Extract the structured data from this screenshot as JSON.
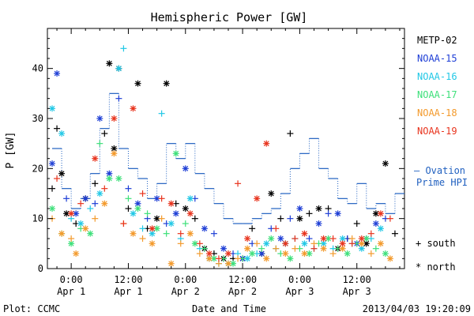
{
  "chart_data": {
    "type": "scatter",
    "title": "Hemispheric Power [GW]",
    "xlabel": "Date and Time",
    "ylabel": "P [GW]",
    "ylim": [
      0,
      48
    ],
    "yticks": [
      0,
      10,
      20,
      30,
      40
    ],
    "xlim_hours_from_apr1_0000": [
      -5,
      70
    ],
    "x_tick_labels": [
      {
        "time": "0:00",
        "date": "Apr 1"
      },
      {
        "time": "12:00",
        "date": "Apr 1"
      },
      {
        "time": "0:00",
        "date": "Apr 2"
      },
      {
        "time": "12:00",
        "date": "Apr 2"
      },
      {
        "time": "0:00",
        "date": "Apr 3"
      },
      {
        "time": "12:00",
        "date": "Apr 3"
      }
    ],
    "legend": {
      "placement": "right",
      "entries": [
        {
          "name": "METP-02",
          "color": "#000000"
        },
        {
          "name": "NOAA-15",
          "color": "#1f3fd6"
        },
        {
          "name": "NOAA-16",
          "color": "#22c8e6"
        },
        {
          "name": "NOAA-17",
          "color": "#3ee07a"
        },
        {
          "name": "NOAA-18",
          "color": "#f39a2c"
        },
        {
          "name": "NOAA-19",
          "color": "#e8341e"
        }
      ],
      "ovation_label_line1": "— Ovation",
      "ovation_label_line2": "Prime HPI",
      "marker_south": "+ south",
      "marker_north": "* north"
    },
    "ovation": {
      "color": "#2060c0",
      "x": [
        -4,
        -2,
        0,
        2,
        4,
        6,
        8,
        10,
        12,
        14,
        16,
        18,
        20,
        22,
        24,
        26,
        28,
        30,
        32,
        34,
        36,
        38,
        40,
        42,
        44,
        46,
        48,
        50,
        52,
        54,
        56,
        58,
        60,
        62,
        64,
        66,
        68
      ],
      "y": [
        24,
        16,
        12,
        14,
        19,
        28,
        35,
        24,
        20,
        18,
        14,
        17,
        25,
        22,
        25,
        19,
        16,
        13,
        10,
        9,
        9,
        10,
        11,
        12,
        15,
        20,
        23,
        26,
        20,
        18,
        14,
        13,
        17,
        12,
        13,
        11,
        15
      ]
    },
    "series": [
      {
        "name": "METP-02",
        "color": "#000000",
        "x": [
          -4,
          -3,
          -2,
          -1,
          1,
          3,
          5,
          7,
          8,
          9,
          10,
          12,
          14,
          16,
          18,
          20,
          22,
          24,
          26,
          28,
          30,
          32,
          34,
          36,
          38,
          40,
          42,
          44,
          46,
          48,
          50,
          52,
          54,
          56,
          58,
          60,
          62,
          64,
          66,
          68
        ],
        "y": [
          16,
          28,
          19,
          11,
          9,
          14,
          17,
          27,
          41,
          24,
          40,
          12,
          37,
          8,
          10,
          37,
          13,
          12,
          10,
          4,
          3,
          2,
          2,
          2,
          8,
          3,
          15,
          10,
          27,
          10,
          11,
          12,
          12,
          4,
          6,
          9,
          5,
          11,
          21,
          7
        ],
        "hemisphere": [
          "s",
          "s",
          "n",
          "n",
          "s",
          "n",
          "s",
          "s",
          "n",
          "n",
          "n",
          "s",
          "n",
          "s",
          "n",
          "n",
          "s",
          "n",
          "s",
          "n",
          "s",
          "n",
          "s",
          "n",
          "s",
          "n",
          "n",
          "s",
          "s",
          "n",
          "s",
          "n",
          "s",
          "n",
          "s",
          "s",
          "n",
          "n",
          "n",
          "s"
        ]
      },
      {
        "name": "NOAA-15",
        "color": "#1f3fd6",
        "x": [
          -4,
          -3,
          -1,
          1,
          3,
          5,
          6,
          8,
          10,
          12,
          14,
          16,
          18,
          20,
          22,
          24,
          26,
          28,
          30,
          32,
          34,
          36,
          38,
          40,
          42,
          44,
          46,
          48,
          50,
          52,
          54,
          56,
          58,
          60,
          62,
          64,
          66
        ],
        "y": [
          21,
          39,
          14,
          11,
          14,
          13,
          30,
          19,
          34,
          16,
          13,
          10,
          14,
          9,
          11,
          20,
          14,
          8,
          7,
          4,
          3,
          2,
          5,
          3,
          8,
          6,
          10,
          12,
          6,
          9,
          11,
          11,
          6,
          5,
          6,
          9,
          10
        ],
        "hemisphere": [
          "n",
          "n",
          "s",
          "n",
          "n",
          "s",
          "n",
          "n",
          "s",
          "s",
          "n",
          "s",
          "n",
          "s",
          "n",
          "n",
          "s",
          "n",
          "s",
          "n",
          "s",
          "n",
          "s",
          "n",
          "s",
          "n",
          "s",
          "n",
          "s",
          "n",
          "s",
          "n",
          "s",
          "n",
          "s",
          "n",
          "s"
        ]
      },
      {
        "name": "NOAA-16",
        "color": "#22c8e6",
        "x": [
          -4,
          -2,
          0,
          2,
          4,
          6,
          8,
          10,
          11,
          13,
          15,
          17,
          19,
          21,
          23,
          25,
          27,
          29,
          31,
          33,
          35,
          37,
          39,
          41,
          43,
          45,
          47,
          49,
          51,
          53,
          55,
          57,
          59,
          61,
          63,
          65
        ],
        "y": [
          32,
          27,
          10,
          9,
          12,
          15,
          18,
          40,
          44,
          11,
          8,
          7,
          31,
          9,
          6,
          14,
          4,
          2,
          1,
          1,
          3,
          2,
          3,
          5,
          4,
          5,
          6,
          5,
          4,
          5,
          4,
          6,
          5,
          4,
          6,
          8
        ],
        "hemisphere": [
          "n",
          "n",
          "s",
          "n",
          "s",
          "n",
          "s",
          "n",
          "s",
          "n",
          "s",
          "n",
          "s",
          "n",
          "s",
          "n",
          "s",
          "n",
          "s",
          "n",
          "s",
          "n",
          "s",
          "n",
          "s",
          "n",
          "s",
          "n",
          "s",
          "n",
          "s",
          "n",
          "s",
          "n",
          "s",
          "n"
        ]
      },
      {
        "name": "NOAA-17",
        "color": "#3ee07a",
        "x": [
          -4,
          -2,
          0,
          2,
          4,
          6,
          8,
          10,
          12,
          14,
          16,
          18,
          20,
          22,
          24,
          26,
          28,
          30,
          32,
          34,
          36,
          38,
          40,
          42,
          44,
          46,
          48,
          50,
          52,
          54,
          56,
          58,
          60,
          62,
          64,
          66
        ],
        "y": [
          12,
          7,
          5,
          8,
          7,
          25,
          18,
          18,
          14,
          12,
          11,
          8,
          7,
          23,
          9,
          5,
          4,
          2,
          2,
          1,
          2,
          3,
          4,
          6,
          3,
          2,
          4,
          3,
          5,
          6,
          4,
          3,
          5,
          6,
          4,
          3
        ],
        "hemisphere": [
          "n",
          "s",
          "n",
          "s",
          "n",
          "s",
          "n",
          "n",
          "s",
          "n",
          "s",
          "n",
          "s",
          "n",
          "s",
          "n",
          "s",
          "n",
          "s",
          "n",
          "s",
          "n",
          "s",
          "n",
          "s",
          "n",
          "s",
          "n",
          "s",
          "n",
          "s",
          "n",
          "s",
          "n",
          "s",
          "n"
        ]
      },
      {
        "name": "NOAA-18",
        "color": "#f39a2c",
        "x": [
          -4,
          -2,
          0,
          1,
          3,
          5,
          7,
          9,
          11,
          13,
          15,
          17,
          19,
          21,
          23,
          25,
          27,
          29,
          31,
          33,
          35,
          37,
          39,
          41,
          43,
          45,
          47,
          49,
          51,
          53,
          55,
          57,
          59,
          61,
          63,
          65,
          67
        ],
        "y": [
          10,
          7,
          6,
          3,
          8,
          10,
          13,
          23,
          9,
          7,
          6,
          5,
          10,
          1,
          5,
          7,
          3,
          2,
          1,
          1,
          2,
          4,
          5,
          2,
          4,
          3,
          4,
          3,
          5,
          4,
          3,
          4,
          6,
          5,
          3,
          5,
          2
        ],
        "hemisphere": [
          "s",
          "n",
          "s",
          "n",
          "n",
          "s",
          "n",
          "n",
          "s",
          "n",
          "s",
          "n",
          "s",
          "n",
          "s",
          "n",
          "s",
          "n",
          "s",
          "n",
          "s",
          "n",
          "s",
          "n",
          "s",
          "n",
          "s",
          "n",
          "s",
          "n",
          "s",
          "n",
          "s",
          "n",
          "s",
          "n",
          "n"
        ]
      },
      {
        "name": "NOAA-19",
        "color": "#e8341e",
        "x": [
          -3,
          0,
          2,
          5,
          7,
          9,
          11,
          13,
          15,
          17,
          19,
          21,
          23,
          25,
          27,
          29,
          31,
          33,
          35,
          37,
          39,
          41,
          43,
          45,
          47,
          49,
          51,
          53,
          55,
          57,
          59,
          61,
          63,
          65,
          67
        ],
        "y": [
          18,
          11,
          13,
          22,
          16,
          30,
          9,
          32,
          15,
          8,
          14,
          13,
          7,
          11,
          5,
          3,
          2,
          3,
          17,
          6,
          14,
          25,
          8,
          5,
          6,
          7,
          4,
          6,
          6,
          5,
          5,
          6,
          7,
          11,
          10
        ],
        "hemisphere": [
          "s",
          "n",
          "s",
          "n",
          "s",
          "n",
          "s",
          "n",
          "s",
          "n",
          "s",
          "n",
          "s",
          "n",
          "s",
          "n",
          "s",
          "n",
          "s",
          "n",
          "n",
          "n",
          "s",
          "n",
          "s",
          "n",
          "s",
          "n",
          "s",
          "n",
          "s",
          "n",
          "s",
          "n",
          "s"
        ]
      }
    ]
  },
  "footer": {
    "plot_label": "Plot: CCMC",
    "timestamp": "2013/04/03 19:20:09"
  }
}
